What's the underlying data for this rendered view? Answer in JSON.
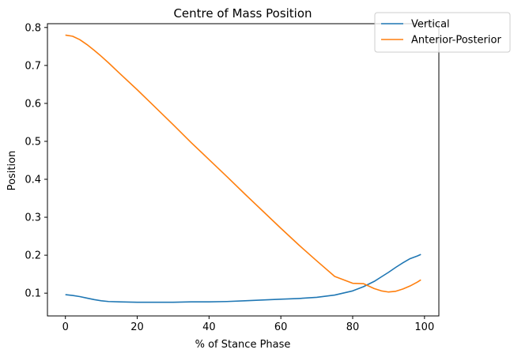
{
  "chart_data": {
    "type": "line",
    "title": "Centre of Mass Position",
    "xlabel": "% of Stance Phase",
    "ylabel": "Position",
    "xlim": [
      -5.0,
      104.0
    ],
    "ylim": [
      0.04,
      0.81
    ],
    "xticks": [
      0,
      20,
      40,
      60,
      80,
      100
    ],
    "yticks": [
      0.1,
      0.2,
      0.3,
      0.4,
      0.5,
      0.6,
      0.7,
      0.8
    ],
    "legend_position": "top-right",
    "grid": false,
    "series": [
      {
        "name": "Vertical",
        "color": "#1f77b4",
        "x": [
          0,
          2,
          4,
          6,
          8,
          10,
          12,
          15,
          20,
          25,
          30,
          35,
          40,
          45,
          50,
          55,
          60,
          65,
          70,
          75,
          80,
          83,
          86,
          88,
          90,
          92,
          94,
          96,
          98,
          99
        ],
        "y": [
          0.096,
          0.094,
          0.091,
          0.087,
          0.083,
          0.08,
          0.078,
          0.077,
          0.076,
          0.076,
          0.076,
          0.077,
          0.077,
          0.078,
          0.08,
          0.082,
          0.084,
          0.086,
          0.089,
          0.095,
          0.106,
          0.117,
          0.131,
          0.143,
          0.155,
          0.168,
          0.18,
          0.191,
          0.198,
          0.202
        ]
      },
      {
        "name": "Anterior-Posterior",
        "color": "#ff7f0e",
        "x": [
          0,
          2,
          4,
          6,
          8,
          10,
          12,
          15,
          20,
          25,
          30,
          35,
          40,
          45,
          50,
          55,
          60,
          65,
          70,
          75,
          80,
          83,
          86,
          88,
          90,
          92,
          94,
          96,
          98,
          99
        ],
        "y": [
          0.78,
          0.777,
          0.768,
          0.755,
          0.74,
          0.724,
          0.707,
          0.68,
          0.636,
          0.59,
          0.544,
          0.497,
          0.452,
          0.407,
          0.361,
          0.316,
          0.271,
          0.227,
          0.185,
          0.144,
          0.126,
          0.125,
          0.112,
          0.106,
          0.103,
          0.105,
          0.111,
          0.119,
          0.129,
          0.135
        ]
      }
    ]
  }
}
